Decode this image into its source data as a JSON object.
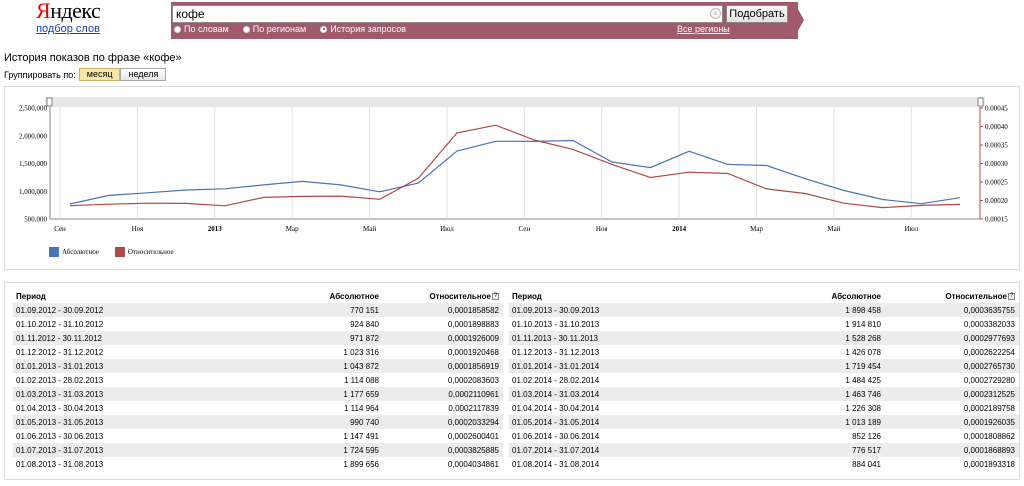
{
  "header": {
    "logo_text_red": "Я",
    "logo_text_black": "ндекс",
    "logo_sub": "подбор слов",
    "search_value": "кофе",
    "search_button": "Подобрать",
    "modes": [
      {
        "label": "По словам",
        "selected": false
      },
      {
        "label": "По регионам",
        "selected": false
      },
      {
        "label": "История запросов",
        "selected": true
      }
    ],
    "regions_link": "Все регионы",
    "band_color": "#a0596d"
  },
  "history_title": "История показов по фразе «кофе»",
  "grouping": {
    "label": "Группировать по:",
    "options": [
      {
        "label": "месяц",
        "selected": true
      },
      {
        "label": "неделя",
        "selected": false
      }
    ]
  },
  "chart_data": {
    "type": "line",
    "x": [
      "09.2012",
      "10.2012",
      "11.2012",
      "12.2012",
      "01.2013",
      "02.2013",
      "03.2013",
      "04.2013",
      "05.2013",
      "06.2013",
      "07.2013",
      "08.2013",
      "09.2013",
      "10.2013",
      "11.2013",
      "12.2013",
      "01.2014",
      "02.2014",
      "03.2014",
      "04.2014",
      "05.2014",
      "06.2014",
      "07.2014",
      "08.2014"
    ],
    "x_tick_labels": [
      "Сен",
      "Ноя",
      "2013",
      "Мар",
      "Май",
      "Июл",
      "Сен",
      "Ноя",
      "2014",
      "Мар",
      "Май",
      "Июл"
    ],
    "y_left_ticks": [
      "2,500,000",
      "2,000,000",
      "1,500,000",
      "1,000,000",
      "500,000"
    ],
    "y_right_ticks": [
      "0.00045",
      "0.00040",
      "0.00035",
      "0.00030",
      "0.00025",
      "0.00020",
      "0.00015"
    ],
    "ylim_left": [
      500000,
      2500000
    ],
    "ylim_right": [
      0.00015,
      0.00045
    ],
    "series": [
      {
        "name": "Абсолютное",
        "color": "#4a74b5",
        "axis": "left",
        "values": [
          770151,
          924840,
          971872,
          1023316,
          1043872,
          1114088,
          1177659,
          1114964,
          990740,
          1147491,
          1724595,
          1899656,
          1898458,
          1914810,
          1528268,
          1426078,
          1719454,
          1484425,
          1463746,
          1226308,
          1013189,
          852126,
          776517,
          884041
        ]
      },
      {
        "name": "Относительное",
        "color": "#b04a48",
        "axis": "right",
        "values": [
          0.0001858582,
          0.0001898883,
          0.0001926009,
          0.0001920468,
          0.0001856919,
          0.0002083603,
          0.0002110961,
          0.0002117839,
          0.0002033294,
          0.0002600401,
          0.0003825885,
          0.0004034861,
          0.0003635755,
          0.0003382033,
          0.0002977693,
          0.0002622254,
          0.000276573,
          0.000272928,
          0.0002312525,
          0.0002189758,
          0.0001926035,
          0.0001808862,
          0.0001868893,
          0.0001893318
        ]
      }
    ],
    "grid": true,
    "legend_position": "bottom-left"
  },
  "table_headers": {
    "period": "Период",
    "absolute": "Абсолютное",
    "relative": "Относительное",
    "help": "?"
  },
  "table_left": [
    {
      "period": "01.09.2012 - 30.09.2012",
      "abs": "770 151",
      "rel": "0,0001858582"
    },
    {
      "period": "01.10.2012 - 31.10.2012",
      "abs": "924 840",
      "rel": "0,0001898883"
    },
    {
      "period": "01.11.2012 - 30.11.2012",
      "abs": "971 872",
      "rel": "0,0001926009"
    },
    {
      "period": "01.12.2012 - 31.12.2012",
      "abs": "1 023 316",
      "rel": "0,0001920468"
    },
    {
      "period": "01.01.2013 - 31.01.2013",
      "abs": "1 043 872",
      "rel": "0,0001856919"
    },
    {
      "period": "01.02.2013 - 28.02.2013",
      "abs": "1 114 088",
      "rel": "0,0002083603"
    },
    {
      "period": "01.03.2013 - 31.03.2013",
      "abs": "1 177 659",
      "rel": "0,0002110961"
    },
    {
      "period": "01.04.2013 - 30.04.2013",
      "abs": "1 114 964",
      "rel": "0,0002117839"
    },
    {
      "period": "01.05.2013 - 31.05.2013",
      "abs": "990 740",
      "rel": "0,0002033294"
    },
    {
      "period": "01.06.2013 - 30.06.2013",
      "abs": "1 147 491",
      "rel": "0,0002600401"
    },
    {
      "period": "01.07.2013 - 31.07.2013",
      "abs": "1 724 595",
      "rel": "0,0003825885"
    },
    {
      "period": "01.08.2013 - 31.08.2013",
      "abs": "1 899 656",
      "rel": "0,0004034861"
    }
  ],
  "table_right": [
    {
      "period": "01.09.2013 - 30.09.2013",
      "abs": "1 898 458",
      "rel": "0,0003635755"
    },
    {
      "period": "01.10.2013 - 31.10.2013",
      "abs": "1 914 810",
      "rel": "0,0003382033"
    },
    {
      "period": "01.11.2013 - 30.11.2013",
      "abs": "1 528 268",
      "rel": "0,0002977693"
    },
    {
      "period": "01.12.2013 - 31.12.2013",
      "abs": "1 426 078",
      "rel": "0,0002622254"
    },
    {
      "period": "01.01.2014 - 31.01.2014",
      "abs": "1 719 454",
      "rel": "0,0002765730"
    },
    {
      "period": "01.02.2014 - 28.02.2014",
      "abs": "1 484 425",
      "rel": "0,0002729280"
    },
    {
      "period": "01.03.2014 - 31.03.2014",
      "abs": "1 463 746",
      "rel": "0,0002312525"
    },
    {
      "period": "01.04.2014 - 30.04.2014",
      "abs": "1 226 308",
      "rel": "0,0002189758"
    },
    {
      "period": "01.05.2014 - 31.05.2014",
      "abs": "1 013 189",
      "rel": "0,0001926035"
    },
    {
      "period": "01.06.2014 - 30.06.2014",
      "abs": "852 126",
      "rel": "0,0001808862"
    },
    {
      "period": "01.07.2014 - 31.07.2014",
      "abs": "776 517",
      "rel": "0,0001868893"
    },
    {
      "period": "01.08.2014 - 31.08.2014",
      "abs": "884 041",
      "rel": "0,0001893318"
    }
  ]
}
